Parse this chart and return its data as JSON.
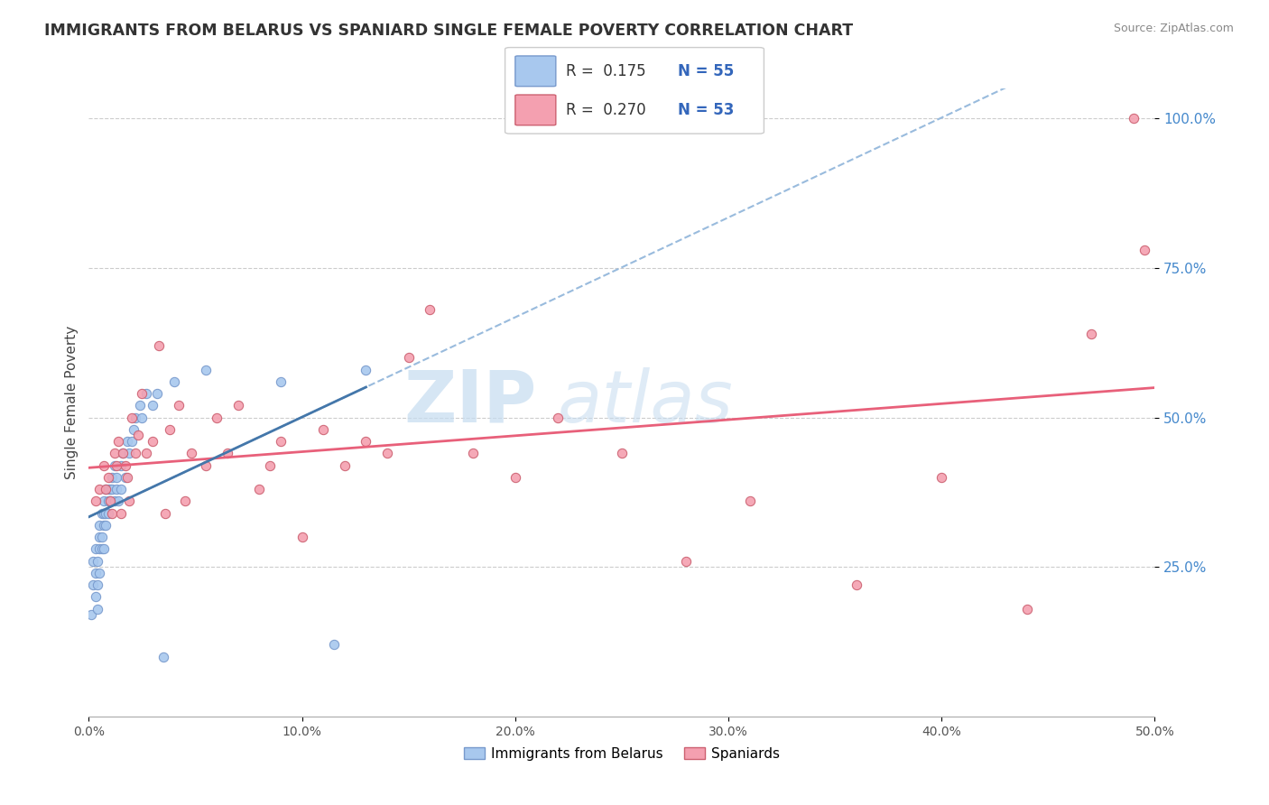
{
  "title": "IMMIGRANTS FROM BELARUS VS SPANIARD SINGLE FEMALE POVERTY CORRELATION CHART",
  "source": "Source: ZipAtlas.com",
  "ylabel": "Single Female Poverty",
  "legend_label1": "Immigrants from Belarus",
  "legend_label2": "Spaniards",
  "r1": "0.175",
  "n1": "55",
  "r2": "0.270",
  "n2": "53",
  "watermark_zip": "ZIP",
  "watermark_atlas": "atlas",
  "color_blue": "#A8C8EE",
  "color_pink": "#F4A0B0",
  "color_trend_blue_short": "#4477AA",
  "color_trend_blue_long": "#99BBDD",
  "color_trend_pink": "#E8607A",
  "xlim": [
    0.0,
    0.5
  ],
  "ylim": [
    0.0,
    1.05
  ],
  "yticks": [
    0.25,
    0.5,
    0.75,
    1.0
  ],
  "xticks": [
    0.0,
    0.1,
    0.2,
    0.3,
    0.4,
    0.5
  ],
  "blue_x": [
    0.001,
    0.002,
    0.002,
    0.003,
    0.003,
    0.003,
    0.004,
    0.004,
    0.004,
    0.005,
    0.005,
    0.005,
    0.005,
    0.006,
    0.006,
    0.006,
    0.007,
    0.007,
    0.007,
    0.007,
    0.008,
    0.008,
    0.008,
    0.009,
    0.009,
    0.009,
    0.01,
    0.01,
    0.011,
    0.011,
    0.012,
    0.012,
    0.013,
    0.013,
    0.014,
    0.015,
    0.015,
    0.016,
    0.017,
    0.018,
    0.019,
    0.02,
    0.021,
    0.022,
    0.024,
    0.025,
    0.027,
    0.03,
    0.032,
    0.035,
    0.04,
    0.055,
    0.09,
    0.115,
    0.13
  ],
  "blue_y": [
    0.17,
    0.22,
    0.26,
    0.2,
    0.24,
    0.28,
    0.18,
    0.22,
    0.26,
    0.3,
    0.28,
    0.32,
    0.24,
    0.34,
    0.3,
    0.28,
    0.36,
    0.32,
    0.28,
    0.34,
    0.38,
    0.34,
    0.32,
    0.36,
    0.38,
    0.34,
    0.38,
    0.36,
    0.4,
    0.38,
    0.42,
    0.36,
    0.38,
    0.4,
    0.36,
    0.38,
    0.42,
    0.44,
    0.4,
    0.46,
    0.44,
    0.46,
    0.48,
    0.5,
    0.52,
    0.5,
    0.54,
    0.52,
    0.54,
    0.1,
    0.56,
    0.58,
    0.56,
    0.12,
    0.58
  ],
  "pink_x": [
    0.003,
    0.005,
    0.007,
    0.008,
    0.009,
    0.01,
    0.011,
    0.012,
    0.013,
    0.014,
    0.015,
    0.016,
    0.017,
    0.018,
    0.019,
    0.02,
    0.022,
    0.023,
    0.025,
    0.027,
    0.03,
    0.033,
    0.036,
    0.038,
    0.042,
    0.045,
    0.048,
    0.055,
    0.06,
    0.065,
    0.07,
    0.08,
    0.085,
    0.09,
    0.1,
    0.11,
    0.12,
    0.13,
    0.14,
    0.15,
    0.16,
    0.18,
    0.2,
    0.22,
    0.25,
    0.28,
    0.31,
    0.36,
    0.4,
    0.44,
    0.47,
    0.49,
    0.495
  ],
  "pink_y": [
    0.36,
    0.38,
    0.42,
    0.38,
    0.4,
    0.36,
    0.34,
    0.44,
    0.42,
    0.46,
    0.34,
    0.44,
    0.42,
    0.4,
    0.36,
    0.5,
    0.44,
    0.47,
    0.54,
    0.44,
    0.46,
    0.62,
    0.34,
    0.48,
    0.52,
    0.36,
    0.44,
    0.42,
    0.5,
    0.44,
    0.52,
    0.38,
    0.42,
    0.46,
    0.3,
    0.48,
    0.42,
    0.46,
    0.44,
    0.6,
    0.68,
    0.44,
    0.4,
    0.5,
    0.44,
    0.26,
    0.36,
    0.22,
    0.4,
    0.18,
    0.64,
    1.0,
    0.78
  ]
}
